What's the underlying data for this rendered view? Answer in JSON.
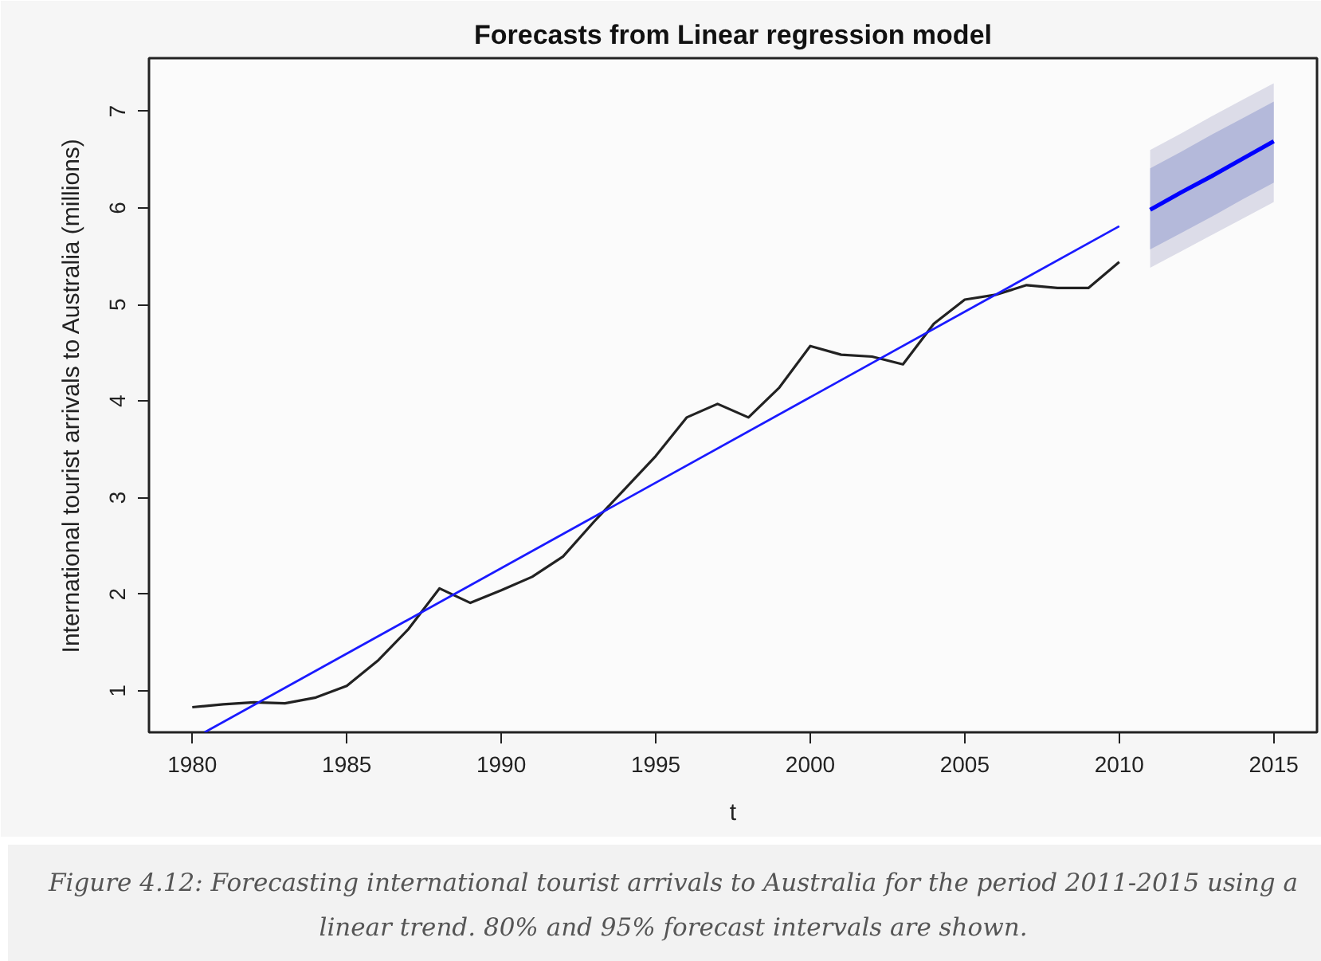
{
  "chart_data": {
    "type": "line",
    "title": "Forecasts from Linear regression model",
    "xlabel": "t",
    "ylabel": "International tourist arrivals to Australia (millions)",
    "annotations": [
      "Figure 4.12: Forecasting international tourist arrivals to Australia for the period 2011-2015 using a linear trend. 80% and 95% forecast intervals are shown."
    ],
    "xlim": [
      1978.6,
      2016.4
    ],
    "ylim": [
      0.57,
      7.55
    ],
    "xticks": [
      1980,
      1985,
      1990,
      1995,
      2000,
      2005,
      2010,
      2015
    ],
    "yticks": [
      1,
      2,
      3,
      4,
      5,
      6,
      7
    ],
    "grid": false,
    "series": [
      {
        "color": "#222222",
        "x": [
          1980,
          1981,
          1982,
          1983,
          1984,
          1985,
          1986,
          1987,
          1988,
          1989,
          1990,
          1991,
          1992,
          1993,
          1994,
          1995,
          1996,
          1997,
          1998,
          1999,
          2000,
          2001,
          2002,
          2003,
          2004,
          2005,
          2006,
          2007,
          2008,
          2009,
          2010
        ],
        "values": [
          0.83,
          0.86,
          0.88,
          0.87,
          0.93,
          1.05,
          1.31,
          1.64,
          2.06,
          1.91,
          2.04,
          2.18,
          2.39,
          2.75,
          3.09,
          3.43,
          3.83,
          3.97,
          3.83,
          4.14,
          4.57,
          4.48,
          4.46,
          4.38,
          4.8,
          5.05,
          5.1,
          5.2,
          5.17,
          5.17,
          5.44
        ]
      },
      {
        "color": "#1a1aff",
        "x": [
          1980.4,
          2010
        ],
        "values": [
          0.57,
          5.81
        ]
      },
      {
        "color": "#dcdce8",
        "x": [
          2011,
          2012,
          2013,
          2014,
          2015
        ],
        "values": [
          null,
          null,
          null,
          null,
          null
        ],
        "lower": [
          5.38,
          5.55,
          5.72,
          5.89,
          6.06
        ],
        "upper": [
          6.6,
          6.77,
          6.95,
          7.12,
          7.29
        ]
      },
      {
        "color": "#b4b9da",
        "x": [
          2011,
          2012,
          2013,
          2014,
          2015
        ],
        "values": [
          null,
          null,
          null,
          null,
          null
        ],
        "lower": [
          5.57,
          5.74,
          5.91,
          6.09,
          6.26
        ],
        "upper": [
          6.41,
          6.58,
          6.76,
          6.93,
          7.1
        ]
      },
      {
        "color": "#0000ff",
        "x": [
          2011,
          2012,
          2013,
          2014,
          2015
        ],
        "values": [
          5.98,
          6.16,
          6.33,
          6.51,
          6.69
        ]
      }
    ]
  }
}
